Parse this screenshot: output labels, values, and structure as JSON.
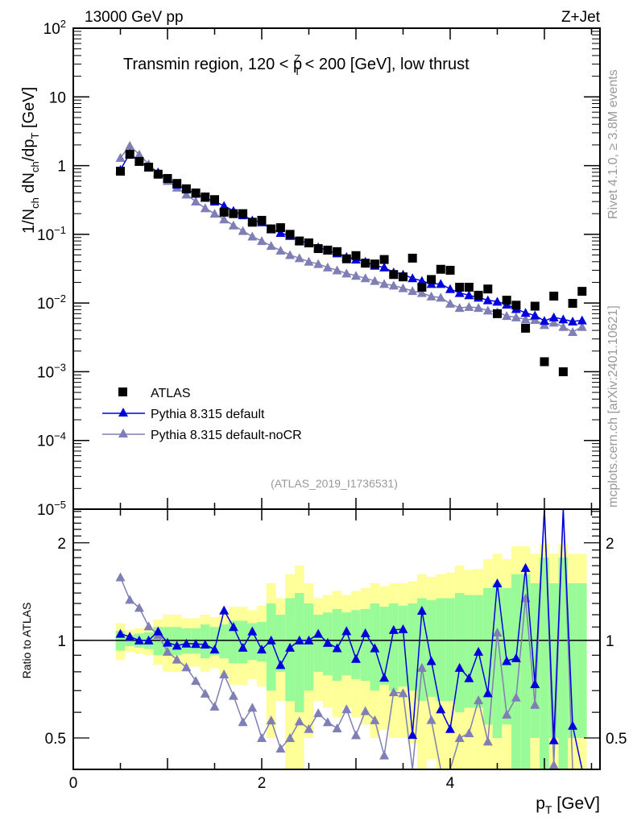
{
  "chart_data": {
    "type": "scatter",
    "header_left": "13000 GeV pp",
    "header_right": "Z+Jet",
    "title": {
      "pre": "Transmin region, 120 < p",
      "sub": "T",
      "sup": "Z",
      "post": " < 200 [GeV], low thrust"
    },
    "ylabel": {
      "a": "1/N",
      "a_sub": "ch",
      "b": " dN",
      "b_sub": "ch",
      "c": "/dp",
      "c_sub": "T",
      "d": " [GeV]"
    },
    "xlabel": {
      "main": "p",
      "sub": "T",
      "unit": " [GeV]"
    },
    "ratio_ylabel": "Ratio to ATLAS",
    "side_label_top": "Rivet 4.1.0, ≥ 3.8M events",
    "side_label_bottom": "mcplots.cern.ch [arXiv:2401.10621]",
    "analysis_id": "(ATLAS_2019_I1736531)",
    "xlim": [
      0,
      5.59
    ],
    "ylim": [
      1e-05,
      100
    ],
    "yscale": "log",
    "ratio_ylim": [
      0.4,
      2.54
    ],
    "x_ticks": [
      {
        "v": 0,
        "label": "0"
      },
      {
        "v": 2,
        "label": "2"
      },
      {
        "v": 4,
        "label": "4"
      }
    ],
    "y_ticks": [
      {
        "exp": 2,
        "base": "10",
        "sup": "2"
      },
      {
        "exp": 1,
        "base": "10",
        "sup": ""
      },
      {
        "exp": 0,
        "base": "1",
        "sup": ""
      },
      {
        "exp": -1,
        "base": "10",
        "sup": "−1"
      },
      {
        "exp": -2,
        "base": "10",
        "sup": "−2"
      },
      {
        "exp": -3,
        "base": "10",
        "sup": "−3"
      },
      {
        "exp": -4,
        "base": "10",
        "sup": "−4"
      },
      {
        "exp": -5,
        "base": "10",
        "sup": "−5"
      }
    ],
    "ratio_ticks": [
      {
        "v": 2,
        "label": "2"
      },
      {
        "v": 1,
        "label": "1"
      },
      {
        "v": 0.5,
        "label": "0.5"
      }
    ],
    "legend": {
      "placement": "lower-left",
      "entries": [
        "ATLAS",
        "Pythia 8.315 default",
        "Pythia 8.315 default-noCR"
      ]
    },
    "colors": {
      "data": "#000000",
      "default": "#0000dd",
      "nocr": "#7f7fb5",
      "band1": "#98fb98",
      "band2": "#ffff99"
    },
    "x": [
      0.5,
      0.6,
      0.7,
      0.8,
      0.9,
      1.0,
      1.1,
      1.2,
      1.3,
      1.4,
      1.5,
      1.6,
      1.7,
      1.8,
      1.9,
      2.0,
      2.1,
      2.2,
      2.3,
      2.4,
      2.5,
      2.6,
      2.7,
      2.8,
      2.9,
      3.0,
      3.1,
      3.2,
      3.3,
      3.4,
      3.5,
      3.6,
      3.7,
      3.8,
      3.9,
      4.0,
      4.1,
      4.2,
      4.3,
      4.4,
      4.5,
      4.6,
      4.7,
      4.8,
      4.9,
      5.0,
      5.1,
      5.2,
      5.3,
      5.4
    ],
    "series": [
      {
        "name": "ATLAS",
        "values": [
          0.83,
          1.46,
          1.15,
          0.95,
          0.75,
          0.65,
          0.55,
          0.46,
          0.4,
          0.35,
          0.32,
          0.21,
          0.2,
          0.2,
          0.15,
          0.16,
          0.12,
          0.125,
          0.1,
          0.08,
          0.075,
          0.062,
          0.059,
          0.056,
          0.044,
          0.049,
          0.038,
          0.037,
          0.043,
          0.026,
          0.024,
          0.045,
          0.017,
          0.022,
          0.031,
          0.03,
          0.017,
          0.017,
          0.013,
          0.016,
          0.007,
          0.011,
          0.0093,
          0.0043,
          0.009,
          0.0014,
          0.0126,
          0.001,
          0.0099,
          0.0148
        ]
      },
      {
        "name": "Pythia 8.315 default",
        "values": [
          0.87,
          1.5,
          1.15,
          0.95,
          0.8,
          0.64,
          0.53,
          0.45,
          0.39,
          0.34,
          0.3,
          0.26,
          0.22,
          0.19,
          0.16,
          0.15,
          0.12,
          0.105,
          0.095,
          0.08,
          0.075,
          0.065,
          0.058,
          0.053,
          0.047,
          0.043,
          0.04,
          0.035,
          0.033,
          0.028,
          0.026,
          0.023,
          0.021,
          0.019,
          0.019,
          0.016,
          0.014,
          0.013,
          0.012,
          0.011,
          0.0105,
          0.0095,
          0.0082,
          0.0072,
          0.0066,
          0.0055,
          0.0062,
          0.0058,
          0.0054,
          0.0056
        ]
      },
      {
        "name": "Pythia 8.315 default-noCR",
        "values": [
          1.3,
          1.95,
          1.45,
          1.05,
          0.78,
          0.6,
          0.48,
          0.38,
          0.3,
          0.24,
          0.2,
          0.165,
          0.135,
          0.112,
          0.093,
          0.08,
          0.068,
          0.058,
          0.05,
          0.045,
          0.04,
          0.037,
          0.033,
          0.03,
          0.027,
          0.025,
          0.023,
          0.021,
          0.019,
          0.018,
          0.0165,
          0.015,
          0.014,
          0.0125,
          0.012,
          0.0098,
          0.0085,
          0.0088,
          0.0085,
          0.0078,
          0.0074,
          0.0065,
          0.0062,
          0.0058,
          0.0057,
          0.0048,
          0.0052,
          0.0045,
          0.0038,
          0.0045
        ]
      }
    ],
    "ratio_band_1sigma": [
      0.07,
      0.04,
      0.05,
      0.06,
      0.1,
      0.1,
      0.1,
      0.09,
      0.09,
      0.12,
      0.1,
      0.12,
      0.15,
      0.15,
      0.13,
      0.14,
      0.3,
      0.2,
      0.35,
      0.4,
      0.3,
      0.2,
      0.22,
      0.25,
      0.22,
      0.24,
      0.25,
      0.3,
      0.27,
      0.3,
      0.28,
      0.3,
      0.35,
      0.33,
      0.35,
      0.35,
      0.4,
      0.38,
      0.38,
      0.45,
      0.5,
      0.45,
      0.6,
      0.6,
      0.5,
      0.8,
      0.5,
      0.8,
      0.5,
      0.5
    ],
    "ratio_band_2sigma": [
      0.13,
      0.08,
      0.09,
      0.1,
      0.16,
      0.2,
      0.2,
      0.17,
      0.17,
      0.2,
      0.18,
      0.22,
      0.27,
      0.27,
      0.24,
      0.28,
      0.5,
      0.35,
      0.6,
      0.7,
      0.5,
      0.35,
      0.38,
      0.42,
      0.38,
      0.42,
      0.45,
      0.5,
      0.47,
      0.5,
      0.5,
      0.52,
      0.6,
      0.57,
      0.6,
      0.62,
      0.7,
      0.65,
      0.66,
      0.78,
      0.85,
      0.78,
      0.95,
      0.95,
      0.85,
      0.99,
      0.85,
      0.99,
      0.85,
      0.85
    ]
  }
}
